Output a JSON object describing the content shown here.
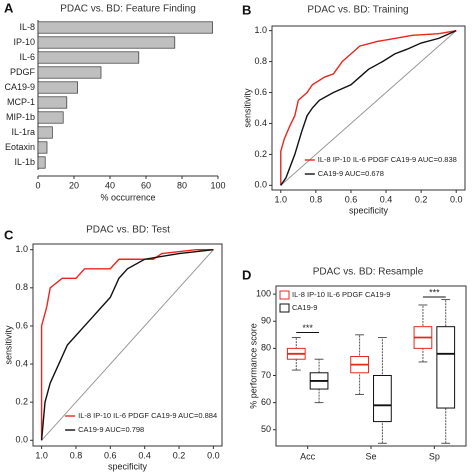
{
  "chart_data": [
    {
      "type": "hbar",
      "label": "A",
      "title": "PDAC vs. BD: Feature Finding",
      "categories": [
        "IL-8",
        "IP-10",
        "IL-6",
        "PDGF",
        "CA19-9",
        "MCP-1",
        "MIP-1b",
        "IL-1ra",
        "Eotaxin",
        "IL-1b"
      ],
      "values": [
        97,
        76,
        56,
        35,
        22,
        16,
        14,
        8,
        5,
        4
      ],
      "color": "#bfbfbf",
      "xlim": [
        0,
        100
      ],
      "xticks": [
        0,
        20,
        40,
        60,
        80,
        100
      ],
      "xlabel": "% occurrence"
    },
    {
      "type": "line",
      "label": "B",
      "title": "PDAC vs. BD: Training",
      "xlabel": "specificity",
      "ylabel": "sensitivity",
      "xlim": [
        1.05,
        -0.05
      ],
      "ylim": [
        -0.03,
        1.03
      ],
      "xticks": [
        {
          "value": 1,
          "label": "1.0"
        },
        {
          "value": 0.8,
          "label": "0.8"
        },
        {
          "value": 0.6,
          "label": "0.6"
        },
        {
          "value": 0.4,
          "label": "0.4"
        },
        {
          "value": 0.2,
          "label": "0.2"
        },
        {
          "value": 0,
          "label": "0.0"
        }
      ],
      "yticks": [
        {
          "value": 0,
          "label": "0.0"
        },
        {
          "value": 0.2,
          "label": "0.2"
        },
        {
          "value": 0.4,
          "label": "0.4"
        },
        {
          "value": 0.6,
          "label": "0.6"
        },
        {
          "value": 0.8,
          "label": "0.8"
        },
        {
          "value": 1,
          "label": "1.0"
        }
      ],
      "series": [
        {
          "name": "IL-8 IP-10 IL-6 PDGF CA19-9 AUC=0.838",
          "color": "#e8271f",
          "x": [
            1,
            1,
            0.98,
            0.95,
            0.92,
            0.9,
            0.85,
            0.82,
            0.75,
            0.7,
            0.65,
            0.6,
            0.55,
            0.45,
            0.35,
            0.25,
            0.1,
            0
          ],
          "values": [
            0,
            0.22,
            0.3,
            0.38,
            0.45,
            0.55,
            0.6,
            0.65,
            0.7,
            0.72,
            0.8,
            0.85,
            0.9,
            0.93,
            0.95,
            0.97,
            0.98,
            1
          ]
        },
        {
          "name": "CA19-9 AUC=0.678",
          "color": "#111111",
          "x": [
            1,
            0.97,
            0.92,
            0.88,
            0.85,
            0.82,
            0.78,
            0.7,
            0.6,
            0.55,
            0.5,
            0.42,
            0.35,
            0.28,
            0.2,
            0.1,
            0
          ],
          "values": [
            0,
            0.05,
            0.2,
            0.35,
            0.45,
            0.5,
            0.55,
            0.6,
            0.65,
            0.7,
            0.75,
            0.8,
            0.85,
            0.88,
            0.92,
            0.95,
            1
          ]
        }
      ]
    },
    {
      "type": "line",
      "label": "C",
      "title": "PDAC vs. BD: Test",
      "xlabel": "specificity",
      "ylabel": "sensitivity",
      "xlim": [
        1.05,
        -0.05
      ],
      "ylim": [
        -0.03,
        1.03
      ],
      "xticks": [
        {
          "value": 1,
          "label": "1.0"
        },
        {
          "value": 0.8,
          "label": "0.8"
        },
        {
          "value": 0.6,
          "label": "0.6"
        },
        {
          "value": 0.4,
          "label": "0.4"
        },
        {
          "value": 0.2,
          "label": "0.2"
        },
        {
          "value": 0,
          "label": "0.0"
        }
      ],
      "yticks": [
        {
          "value": 0,
          "label": "0.0"
        },
        {
          "value": 0.2,
          "label": "0.2"
        },
        {
          "value": 0.4,
          "label": "0.4"
        },
        {
          "value": 0.6,
          "label": "0.6"
        },
        {
          "value": 0.8,
          "label": "0.8"
        },
        {
          "value": 1,
          "label": "1.0"
        }
      ],
      "series": [
        {
          "name": "IL-8 IP-10 IL-6 PDGF CA19-9 AUC=0.884",
          "color": "#e8271f",
          "x": [
            1,
            1,
            0.97,
            0.95,
            0.88,
            0.8,
            0.75,
            0.6,
            0.55,
            0.35,
            0.3,
            0.1,
            0
          ],
          "values": [
            0,
            0.6,
            0.7,
            0.8,
            0.85,
            0.85,
            0.9,
            0.9,
            0.95,
            0.95,
            0.98,
            1,
            1
          ]
        },
        {
          "name": "CA19-9 AUC=0.798",
          "color": "#111111",
          "x": [
            1,
            0.98,
            0.95,
            0.9,
            0.85,
            0.8,
            0.75,
            0.7,
            0.65,
            0.6,
            0.55,
            0.5,
            0.4,
            0.2,
            0
          ],
          "values": [
            0,
            0.2,
            0.3,
            0.4,
            0.5,
            0.55,
            0.6,
            0.65,
            0.7,
            0.75,
            0.85,
            0.9,
            0.95,
            0.98,
            1
          ]
        }
      ]
    },
    {
      "type": "box",
      "label": "D",
      "title": "PDAC vs. BD: Resample",
      "ylabel": "% performance score",
      "categories": [
        "Acc",
        "Se",
        "Sp"
      ],
      "ylim": [
        44,
        103
      ],
      "yticks": [
        50,
        60,
        70,
        80,
        90,
        100
      ],
      "series": [
        {
          "name": "IL-8 IP-10 IL-6 PDGF CA19-9",
          "color": "#e8271f",
          "low": [
            72,
            63,
            75
          ],
          "q1": [
            76,
            71,
            80
          ],
          "median": [
            78,
            74,
            84
          ],
          "q3": [
            80,
            77,
            88
          ],
          "high": [
            84,
            85,
            96
          ]
        },
        {
          "name": "CA19-9",
          "color": "#111111",
          "low": [
            60,
            45,
            45
          ],
          "q1": [
            65,
            53,
            58
          ],
          "median": [
            68,
            59,
            78
          ],
          "q3": [
            71,
            70,
            88
          ],
          "high": [
            76,
            84,
            98
          ]
        }
      ],
      "annotations": [
        {
          "text": "***",
          "category": "Acc"
        },
        {
          "text": "***",
          "category": "Sp"
        }
      ]
    }
  ]
}
